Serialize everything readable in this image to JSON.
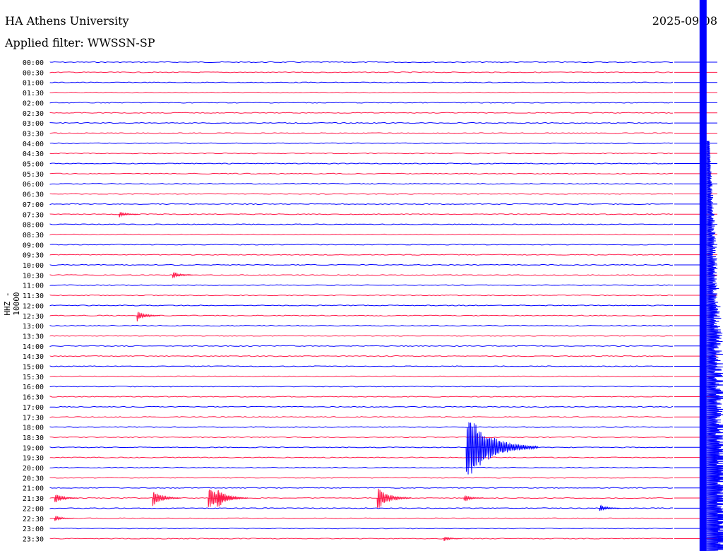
{
  "header": {
    "station": "HA Athens University",
    "filter": "Applied filter: WWSSN-SP",
    "date": "2025-09-08"
  },
  "channel_label": "HHZ - 10000",
  "colors": {
    "trace_blue": "#0000ff",
    "trace_red": "#ff1a4a"
  },
  "chart_data": {
    "type": "line",
    "title": "HA Athens University",
    "ylabel": "HHZ - 10000",
    "traces": [
      {
        "label": "00:00",
        "color": "blue"
      },
      {
        "label": "00:30",
        "color": "red"
      },
      {
        "label": "01:00",
        "color": "blue"
      },
      {
        "label": "01:30",
        "color": "red"
      },
      {
        "label": "02:00",
        "color": "blue"
      },
      {
        "label": "02:30",
        "color": "red"
      },
      {
        "label": "03:00",
        "color": "blue"
      },
      {
        "label": "03:30",
        "color": "red"
      },
      {
        "label": "04:00",
        "color": "blue"
      },
      {
        "label": "04:30",
        "color": "red"
      },
      {
        "label": "05:00",
        "color": "blue"
      },
      {
        "label": "05:30",
        "color": "red"
      },
      {
        "label": "06:00",
        "color": "blue"
      },
      {
        "label": "06:30",
        "color": "red"
      },
      {
        "label": "07:00",
        "color": "blue"
      },
      {
        "label": "07:30",
        "color": "red"
      },
      {
        "label": "08:00",
        "color": "blue"
      },
      {
        "label": "08:30",
        "color": "red"
      },
      {
        "label": "09:00",
        "color": "blue"
      },
      {
        "label": "09:30",
        "color": "red"
      },
      {
        "label": "10:00",
        "color": "blue"
      },
      {
        "label": "10:30",
        "color": "red"
      },
      {
        "label": "11:00",
        "color": "blue"
      },
      {
        "label": "11:30",
        "color": "red"
      },
      {
        "label": "12:00",
        "color": "blue"
      },
      {
        "label": "12:30",
        "color": "red"
      },
      {
        "label": "13:00",
        "color": "blue"
      },
      {
        "label": "13:30",
        "color": "red"
      },
      {
        "label": "14:00",
        "color": "blue"
      },
      {
        "label": "14:30",
        "color": "red"
      },
      {
        "label": "15:00",
        "color": "blue"
      },
      {
        "label": "15:30",
        "color": "red"
      },
      {
        "label": "16:00",
        "color": "blue"
      },
      {
        "label": "16:30",
        "color": "red"
      },
      {
        "label": "17:00",
        "color": "blue"
      },
      {
        "label": "17:30",
        "color": "red"
      },
      {
        "label": "18:00",
        "color": "blue"
      },
      {
        "label": "18:30",
        "color": "red"
      },
      {
        "label": "19:00",
        "color": "blue"
      },
      {
        "label": "19:30",
        "color": "red"
      },
      {
        "label": "20:00",
        "color": "blue"
      },
      {
        "label": "20:30",
        "color": "red"
      },
      {
        "label": "21:00",
        "color": "blue"
      },
      {
        "label": "21:30",
        "color": "red"
      },
      {
        "label": "22:00",
        "color": "blue"
      },
      {
        "label": "22:30",
        "color": "red"
      },
      {
        "label": "23:00",
        "color": "blue"
      },
      {
        "label": "23:30",
        "color": "red"
      }
    ],
    "events": [
      {
        "trace": "07:30",
        "minute": 3.1,
        "amplitude": 5,
        "color": "red"
      },
      {
        "trace": "10:30",
        "minute": 5.5,
        "amplitude": 6,
        "color": "red"
      },
      {
        "trace": "12:30",
        "minute": 3.9,
        "amplitude": 9,
        "color": "red"
      },
      {
        "trace": "19:00",
        "minute": 18.7,
        "amplitude": 55,
        "color": "blue"
      },
      {
        "trace": "21:30",
        "minute": 0.2,
        "amplitude": 9,
        "color": "red"
      },
      {
        "trace": "21:30",
        "minute": 4.6,
        "amplitude": 14,
        "color": "red"
      },
      {
        "trace": "21:30",
        "minute": 7.1,
        "amplitude": 20,
        "color": "red"
      },
      {
        "trace": "21:30",
        "minute": 7.5,
        "amplitude": 16,
        "color": "red"
      },
      {
        "trace": "21:30",
        "minute": 14.7,
        "amplitude": 19,
        "color": "red"
      },
      {
        "trace": "21:30",
        "minute": 18.6,
        "amplitude": 6,
        "color": "red"
      },
      {
        "trace": "22:00",
        "minute": 24.7,
        "amplitude": 6,
        "color": "blue"
      },
      {
        "trace": "22:30",
        "minute": 0.2,
        "amplitude": 5,
        "color": "red"
      },
      {
        "trace": "23:30",
        "minute": 17.7,
        "amplitude": 4,
        "color": "red"
      }
    ],
    "large_event": {
      "start_trace": "00:00",
      "minute": 29.2,
      "color": "blue"
    }
  }
}
